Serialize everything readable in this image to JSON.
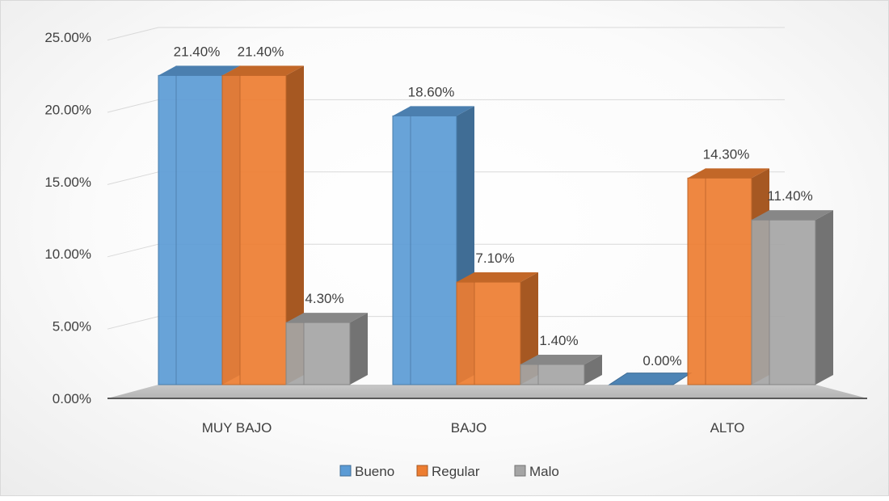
{
  "chart_data": {
    "type": "bar",
    "categories": [
      "MUY BAJO",
      "BAJO",
      "ALTO"
    ],
    "series": [
      {
        "name": "Bueno",
        "values": [
          21.4,
          18.6,
          0.0
        ],
        "labels": [
          "21.40%",
          "18.60%",
          "0.00%"
        ]
      },
      {
        "name": "Regular",
        "values": [
          21.4,
          7.1,
          14.3
        ],
        "labels": [
          "21.40%",
          "7.10%",
          "14.30%"
        ]
      },
      {
        "name": "Malo",
        "values": [
          4.3,
          1.4,
          11.4
        ],
        "labels": [
          "4.30%",
          "1.40%",
          "11.40%"
        ]
      }
    ],
    "y_ticks": [
      0,
      5,
      10,
      15,
      20,
      25
    ],
    "y_tick_labels": [
      "0.00%",
      "5.00%",
      "10.00%",
      "15.00%",
      "20.00%",
      "25.00%"
    ],
    "ylim": [
      0,
      25
    ],
    "grid": true,
    "legend_position": "bottom",
    "colors": {
      "Bueno": "#5b9bd5",
      "Regular": "#ed7d31",
      "Malo": "#a5a5a5"
    }
  }
}
